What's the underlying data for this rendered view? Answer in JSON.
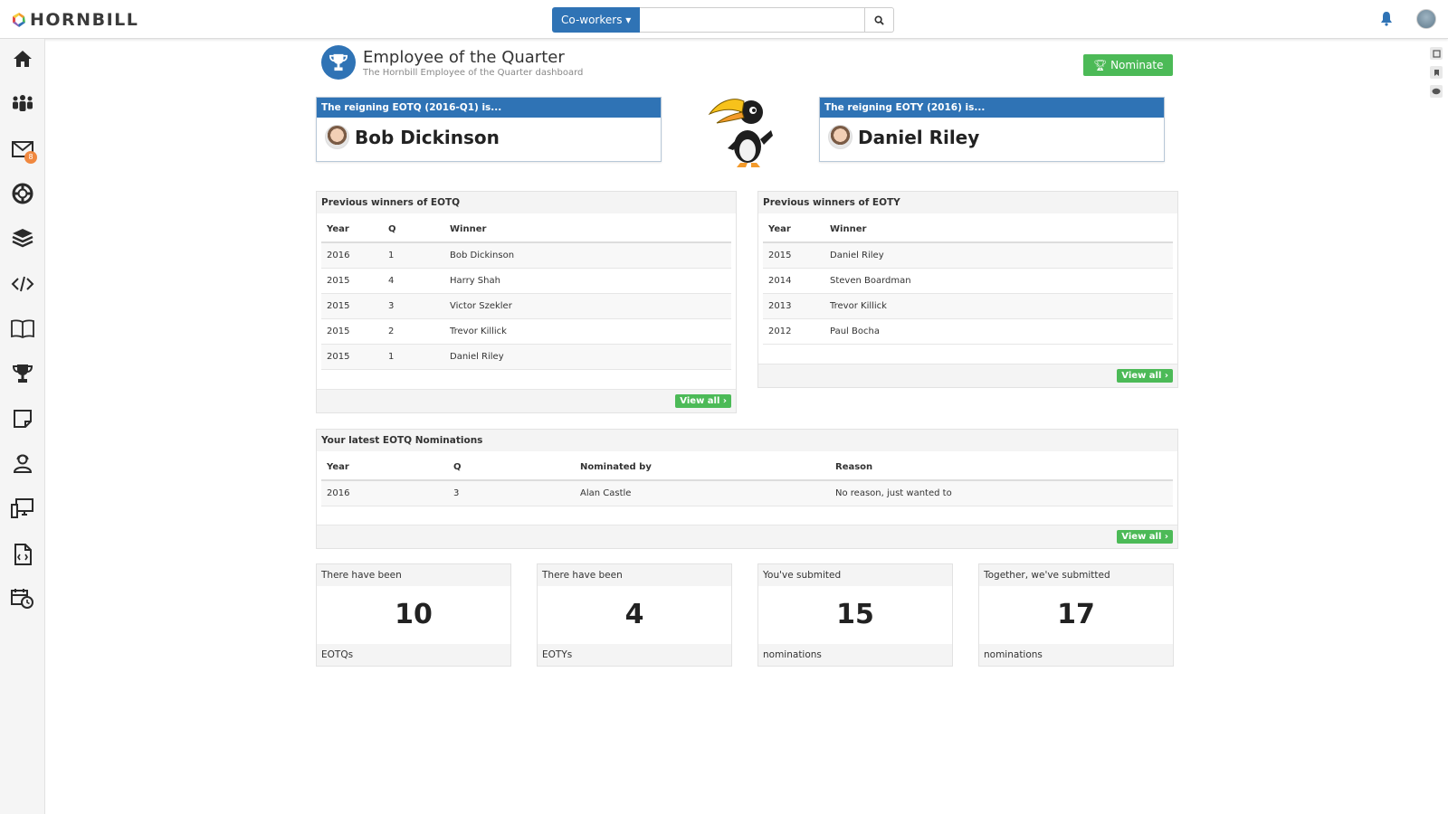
{
  "app": {
    "logo_text": "HORNBILL"
  },
  "search": {
    "scope_label": "Co-workers ▾",
    "placeholder": ""
  },
  "header": {
    "title": "Employee of the Quarter",
    "subtitle": "The Hornbill Employee of the Quarter dashboard",
    "nominate_label": "Nominate"
  },
  "sidebar": {
    "mail_badge": "8"
  },
  "reign_eotq": {
    "heading": "The reigning EOTQ (2016-Q1) is...",
    "name": "Bob Dickinson"
  },
  "reign_eoty": {
    "heading": "The reigning EOTY (2016) is...",
    "name": "Daniel Riley"
  },
  "eotq_panel": {
    "title": "Previous winners of EOTQ",
    "columns": [
      "Year",
      "Q",
      "Winner"
    ],
    "rows": [
      [
        "2016",
        "1",
        "Bob Dickinson"
      ],
      [
        "2015",
        "4",
        "Harry Shah"
      ],
      [
        "2015",
        "3",
        "Victor Szekler"
      ],
      [
        "2015",
        "2",
        "Trevor Killick"
      ],
      [
        "2015",
        "1",
        "Daniel Riley"
      ]
    ],
    "view_all": "View all ›"
  },
  "eoty_panel": {
    "title": "Previous winners of EOTY",
    "columns": [
      "Year",
      "Winner"
    ],
    "rows": [
      [
        "2015",
        "Daniel Riley"
      ],
      [
        "2014",
        "Steven Boardman"
      ],
      [
        "2013",
        "Trevor Killick"
      ],
      [
        "2012",
        "Paul Bocha"
      ]
    ],
    "view_all": "View all ›"
  },
  "nominations_panel": {
    "title": "Your latest EOTQ Nominations",
    "columns": [
      "Year",
      "Q",
      "Nominated by",
      "Reason"
    ],
    "rows": [
      [
        "2016",
        "3",
        "Alan Castle",
        "No reason, just wanted to"
      ]
    ],
    "view_all": "View all ›"
  },
  "stats": [
    {
      "top": "There have been",
      "value": "10",
      "bottom": "EOTQs"
    },
    {
      "top": "There have been",
      "value": "4",
      "bottom": "EOTYs"
    },
    {
      "top": "You've submited",
      "value": "15",
      "bottom": "nominations"
    },
    {
      "top": "Together, we've submitted",
      "value": "17",
      "bottom": "nominations"
    }
  ],
  "colors": {
    "primary": "#2f73b5",
    "success": "#4cba57",
    "badge": "#f0883f"
  }
}
